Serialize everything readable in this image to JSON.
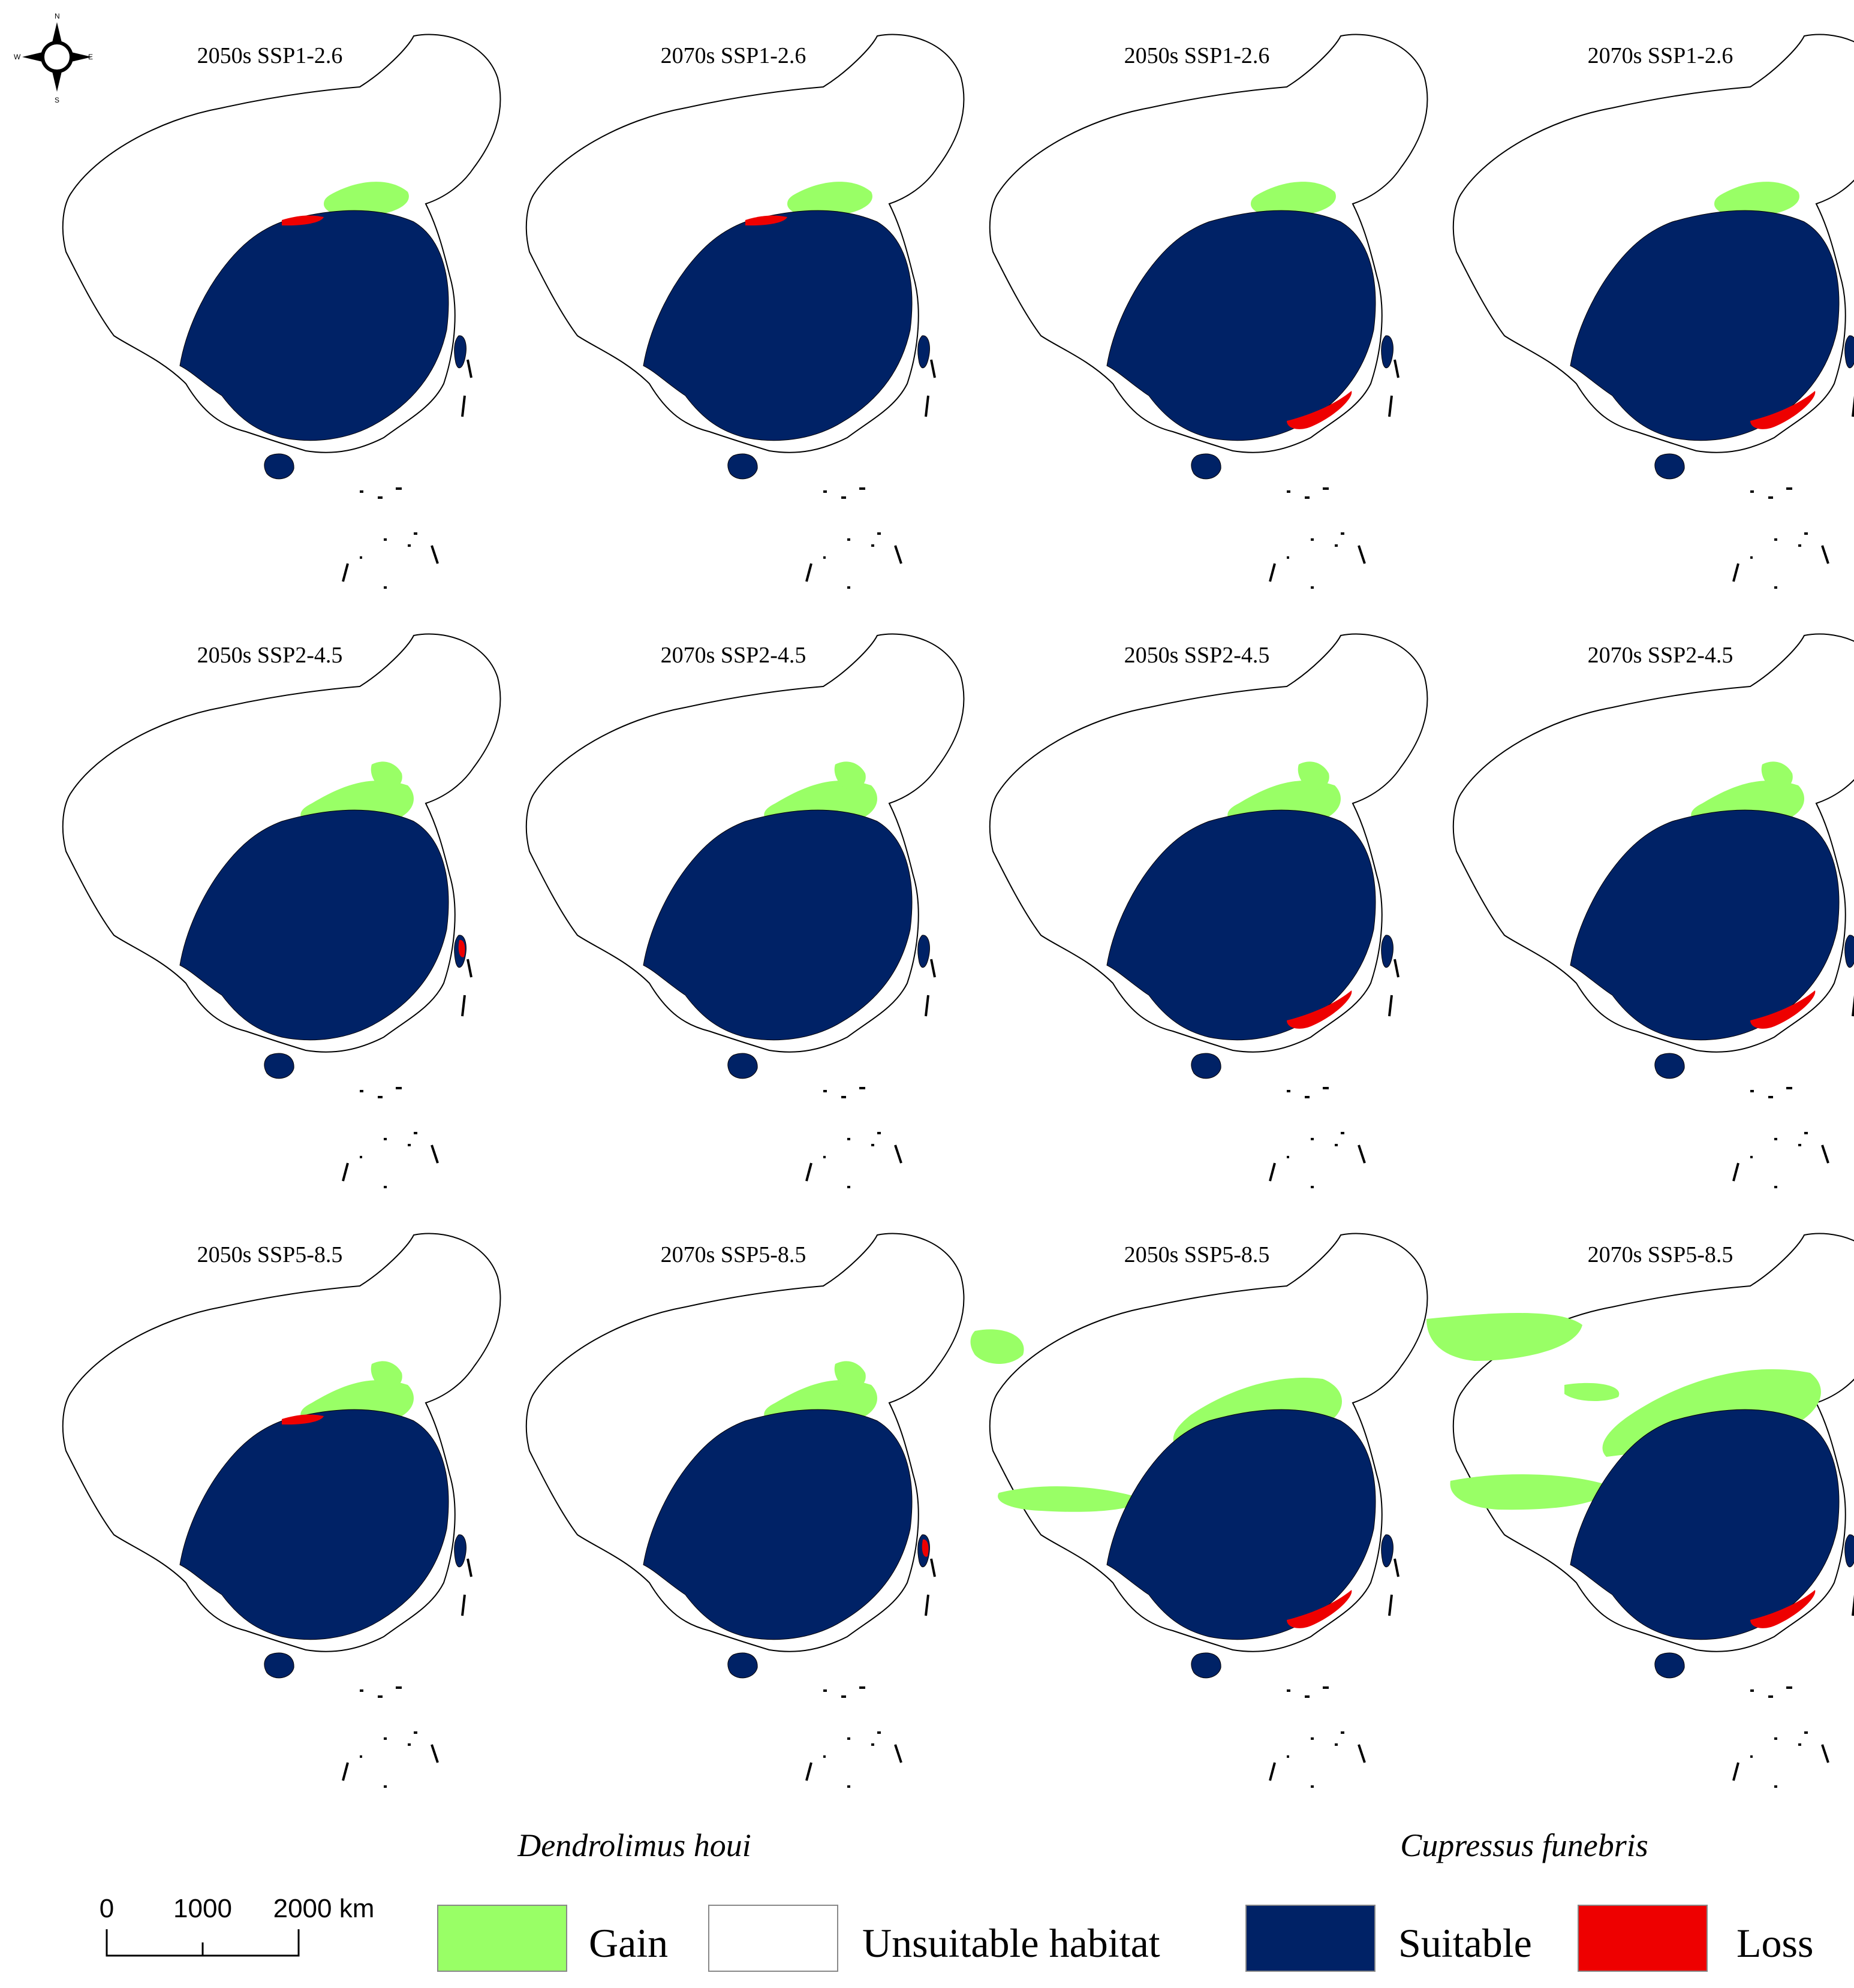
{
  "compass": {
    "n": "N",
    "s": "S",
    "e": "E",
    "w": "W"
  },
  "colors": {
    "gain": "#99ff66",
    "suitable": "#002266",
    "loss": "#ee0000",
    "unsuitable": "#ffffff",
    "border": "#000000"
  },
  "panels": [
    {
      "title": "2050s SSP1-2.6",
      "species": "Dendrolimus houi",
      "gain": "low",
      "loss": "north edge"
    },
    {
      "title": "2070s SSP1-2.6",
      "species": "Dendrolimus houi",
      "gain": "low",
      "loss": "north edge"
    },
    {
      "title": "2050s SSP1-2.6",
      "species": "Cupressus funebris",
      "gain": "low",
      "loss": "south coast"
    },
    {
      "title": "2070s SSP1-2.6",
      "species": "Cupressus funebris",
      "gain": "low",
      "loss": "south coast"
    },
    {
      "title": "2050s SSP2-4.5",
      "species": "Dendrolimus houi",
      "gain": "medium",
      "loss": "Taiwan"
    },
    {
      "title": "2070s SSP2-4.5",
      "species": "Dendrolimus houi",
      "gain": "medium",
      "loss": "none"
    },
    {
      "title": "2050s SSP2-4.5",
      "species": "Cupressus funebris",
      "gain": "medium",
      "loss": "south coast"
    },
    {
      "title": "2070s SSP2-4.5",
      "species": "Cupressus funebris",
      "gain": "medium",
      "loss": "south coast"
    },
    {
      "title": "2050s SSP5-8.5",
      "species": "Dendrolimus houi",
      "gain": "medium",
      "loss": "north edge"
    },
    {
      "title": "2070s SSP5-8.5",
      "species": "Dendrolimus houi",
      "gain": "medium",
      "loss": "Taiwan"
    },
    {
      "title": "2050s SSP5-8.5",
      "species": "Cupressus funebris",
      "gain": "high",
      "loss": "south coast"
    },
    {
      "title": "2070s SSP5-8.5",
      "species": "Cupressus funebris",
      "gain": "very high",
      "loss": "south coast"
    }
  ],
  "species_labels": [
    "Dendrolimus houi",
    "Cupressus funebris"
  ],
  "scale_bar": {
    "ticks": [
      "0",
      "1000",
      "2000 km"
    ]
  },
  "legend": [
    {
      "label": "Gain",
      "key": "gain"
    },
    {
      "label": "Unsuitable habitat",
      "key": "unsuitable"
    },
    {
      "label": "Suitable",
      "key": "suitable"
    },
    {
      "label": "Loss",
      "key": "loss"
    }
  ]
}
